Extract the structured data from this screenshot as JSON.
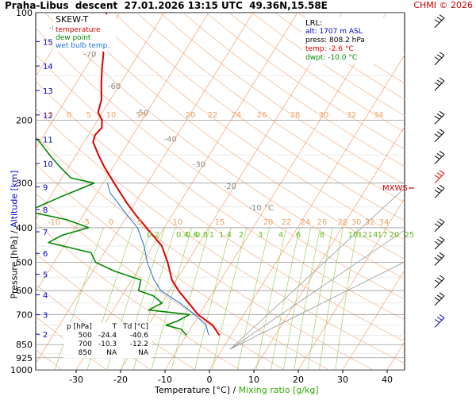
{
  "header": {
    "station": "Praha-Libus",
    "mode": "descent",
    "datetime": "27.01.2026 13:15 UTC",
    "coords": "49.36N,15.58E",
    "copyright": "CHMI © 2026"
  },
  "axes": {
    "ylabel_pressure": "Pressure [hPa]",
    "ylabel_sep": " / ",
    "ylabel_altitude": "Altitude [km]",
    "xlabel_temp": "Temperature [°C]",
    "xlabel_sep": " / ",
    "xlabel_mix": "Mixing ratio [g/kg]"
  },
  "legend": {
    "title": "SKEW-T",
    "items": [
      {
        "label": "temperature",
        "color": "#dd0000"
      },
      {
        "label": "dew point",
        "color": "#008800"
      },
      {
        "label": "wet bulb temp.",
        "color": "#1f6fd0"
      }
    ]
  },
  "lrl": {
    "title": "LRL:",
    "alt": "alt: 1707 m ASL",
    "press": "press: 808.2 hPa",
    "temp": "temp: -2.6 °C",
    "dwpt": "dwpt: -10.0 °C"
  },
  "mxws_label": "MXWS",
  "table": {
    "headers": [
      "p [hPa]",
      "T",
      "Td [°C]"
    ],
    "rows": [
      [
        "500",
        "-24.4",
        "-40.6"
      ],
      [
        "700",
        "-10.3",
        "-12.2"
      ],
      [
        "850",
        "NA",
        "NA"
      ]
    ]
  },
  "chart_data": {
    "type": "line",
    "subtype": "skew-t log-p diagram",
    "x_ticks": [
      "-30",
      "-20",
      "-10",
      "0",
      "10",
      "20",
      "30",
      "40"
    ],
    "pressure_ticks": [
      "100",
      "200",
      "300",
      "400",
      "500",
      "600",
      "700",
      "850",
      "925",
      "1000"
    ],
    "pressure_values": [
      100,
      200,
      300,
      400,
      500,
      600,
      700,
      850,
      925,
      1000
    ],
    "altitude_ticks": [
      "15",
      "14",
      "13",
      "12",
      "11",
      "10",
      "9",
      "8",
      "7",
      "6",
      "5",
      "4",
      "3",
      "2"
    ],
    "altitude_km": [
      15,
      14,
      13,
      12,
      11,
      10,
      9,
      8,
      7,
      6,
      5,
      4,
      3,
      2
    ],
    "isotherm_labels": [
      "-80 °C",
      "-70",
      "-60",
      "-50",
      "-40",
      "-30",
      "-20",
      "-10 °C"
    ],
    "isotherm_values": [
      -80,
      -70,
      -60,
      -50,
      -40,
      -30,
      -20,
      -10
    ],
    "theta_labels_upper": [
      "-5",
      "0",
      "5",
      "10",
      "15",
      "20",
      "22",
      "24",
      "26",
      "28",
      "30",
      "32",
      "34"
    ],
    "theta_labels_lower": [
      "-10",
      "-5",
      "0",
      "5",
      "10",
      "15",
      "20",
      "22",
      "24",
      "26",
      "28",
      "30",
      "32",
      "34"
    ],
    "mixing_ratio_labels": [
      "0.2",
      "0.4",
      "0.6",
      "0.8",
      "1",
      "1.4",
      "2",
      "3",
      "4",
      "6",
      "8",
      "10",
      "12",
      "14",
      "17",
      "20",
      "25"
    ],
    "mixing_ratio_values": [
      0.2,
      0.4,
      0.6,
      0.8,
      1,
      1.4,
      2,
      3,
      4,
      6,
      8,
      10,
      12,
      14,
      17,
      20,
      25
    ],
    "series": [
      {
        "name": "temperature",
        "color": "#dd0000",
        "points": [
          [
            800,
            -2.6
          ],
          [
            750,
            -5.5
          ],
          [
            700,
            -10.3
          ],
          [
            650,
            -14
          ],
          [
            600,
            -18
          ],
          [
            560,
            -21
          ],
          [
            500,
            -24.4
          ],
          [
            450,
            -28
          ],
          [
            400,
            -34
          ],
          [
            370,
            -38
          ],
          [
            340,
            -42
          ],
          [
            300,
            -47.5
          ],
          [
            270,
            -52
          ],
          [
            250,
            -55
          ],
          [
            230,
            -58
          ],
          [
            220,
            -58.5
          ],
          [
            210,
            -58
          ],
          [
            200,
            -59
          ],
          [
            190,
            -61
          ],
          [
            175,
            -62
          ],
          [
            160,
            -64
          ],
          [
            145,
            -66
          ],
          [
            130,
            -68
          ],
          [
            120,
            -70
          ],
          [
            110,
            -71
          ],
          [
            100,
            -73
          ]
        ]
      },
      {
        "name": "dew point",
        "color": "#008800",
        "points": [
          [
            800,
            -10
          ],
          [
            770,
            -12
          ],
          [
            750,
            -16
          ],
          [
            730,
            -14
          ],
          [
            700,
            -12.2
          ],
          [
            680,
            -22
          ],
          [
            650,
            -20
          ],
          [
            620,
            -23
          ],
          [
            600,
            -27
          ],
          [
            560,
            -28
          ],
          [
            530,
            -35
          ],
          [
            500,
            -40.6
          ],
          [
            470,
            -43
          ],
          [
            440,
            -54
          ],
          [
            420,
            -52
          ],
          [
            400,
            -47
          ],
          [
            380,
            -53
          ],
          [
            360,
            -63
          ],
          [
            330,
            -58
          ],
          [
            300,
            -52
          ],
          [
            290,
            -58
          ],
          [
            270,
            -62
          ],
          [
            250,
            -66
          ],
          [
            230,
            -70
          ],
          [
            215,
            -74
          ],
          [
            200,
            -76
          ],
          [
            180,
            -78
          ],
          [
            160,
            -82
          ],
          [
            140,
            -87
          ],
          [
            120,
            -91
          ],
          [
            100,
            -96
          ]
        ]
      },
      {
        "name": "wet bulb temp.",
        "color": "#1f6fd0",
        "points": [
          [
            800,
            -5
          ],
          [
            750,
            -7
          ],
          [
            700,
            -11
          ],
          [
            650,
            -16
          ],
          [
            600,
            -22
          ],
          [
            560,
            -25
          ],
          [
            500,
            -29
          ],
          [
            450,
            -32
          ],
          [
            400,
            -36
          ],
          [
            370,
            -40
          ],
          [
            340,
            -44
          ],
          [
            320,
            -47
          ],
          [
            300,
            -49
          ]
        ]
      }
    ],
    "wind_levels_hpa": [
      110,
      140,
      165,
      205,
      230,
      265,
      300,
      330,
      410,
      460,
      510,
      590,
      660,
      760
    ]
  }
}
